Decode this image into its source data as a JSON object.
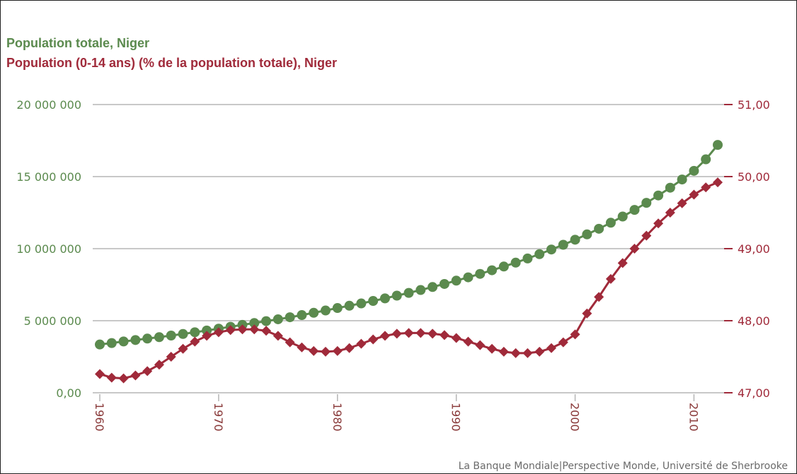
{
  "chart_data": {
    "type": "line",
    "x": [
      1960,
      1961,
      1962,
      1963,
      1964,
      1965,
      1966,
      1967,
      1968,
      1969,
      1970,
      1971,
      1972,
      1973,
      1974,
      1975,
      1976,
      1977,
      1978,
      1979,
      1980,
      1981,
      1982,
      1983,
      1984,
      1985,
      1986,
      1987,
      1988,
      1989,
      1990,
      1991,
      1992,
      1993,
      1994,
      1995,
      1996,
      1997,
      1998,
      1999,
      2000,
      2001,
      2002,
      2003,
      2004,
      2005,
      2006,
      2007,
      2008,
      2009,
      2010,
      2011,
      2012
    ],
    "x_ticks": [
      "1960",
      "1970",
      "1980",
      "1990",
      "2000",
      "2010"
    ],
    "y_left_ticks": [
      "0,00",
      "5 000 000",
      "10 000 000",
      "15 000 000",
      "20 000 000"
    ],
    "y_right_ticks": [
      "47,00",
      "48,00",
      "49,00",
      "50,00",
      "51,00"
    ],
    "ylim_left": [
      0,
      20000000
    ],
    "ylim_right": [
      47,
      51
    ],
    "grid": true,
    "legend_position": "top-left",
    "series": [
      {
        "name": "Population totale, Niger",
        "axis": "left",
        "color": "#5b8a4e",
        "marker": "circle",
        "values": [
          3350000,
          3450000,
          3560000,
          3660000,
          3760000,
          3860000,
          3970000,
          4080000,
          4200000,
          4320000,
          4450000,
          4580000,
          4710000,
          4840000,
          4970000,
          5100000,
          5240000,
          5390000,
          5550000,
          5710000,
          5880000,
          6040000,
          6200000,
          6370000,
          6550000,
          6740000,
          6930000,
          7130000,
          7340000,
          7550000,
          7780000,
          8010000,
          8250000,
          8500000,
          8760000,
          9030000,
          9320000,
          9620000,
          9940000,
          10270000,
          10620000,
          10990000,
          11380000,
          11800000,
          12230000,
          12690000,
          13180000,
          13690000,
          14230000,
          14800000,
          15400000,
          16200000,
          17200000
        ]
      },
      {
        "name": "Population (0-14 ans) (% de la population totale), Niger",
        "axis": "right",
        "color": "#a02a3a",
        "marker": "diamond",
        "values": [
          47.26,
          47.21,
          47.2,
          47.24,
          47.3,
          47.39,
          47.5,
          47.61,
          47.71,
          47.79,
          47.84,
          47.87,
          47.88,
          47.88,
          47.86,
          47.79,
          47.7,
          47.63,
          47.58,
          47.57,
          47.58,
          47.62,
          47.68,
          47.74,
          47.79,
          47.82,
          47.83,
          47.83,
          47.82,
          47.8,
          47.76,
          47.71,
          47.66,
          47.61,
          47.57,
          47.55,
          47.55,
          47.57,
          47.62,
          47.7,
          47.81,
          48.1,
          48.33,
          48.58,
          48.8,
          49.0,
          49.18,
          49.35,
          49.5,
          49.63,
          49.75,
          49.85,
          49.92
        ]
      }
    ],
    "source": "La Banque Mondiale|Perspective Monde, Université de Sherbrooke"
  }
}
